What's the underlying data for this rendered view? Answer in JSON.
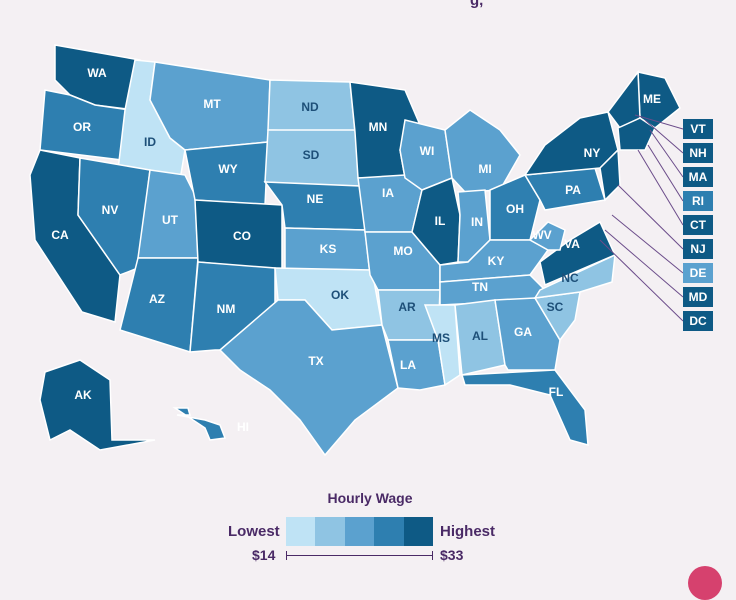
{
  "page": {
    "title_fragment": "g,"
  },
  "legend": {
    "title": "Hourly Wage",
    "lowest_label": "Lowest",
    "highest_label": "Highest",
    "min_value": "$14",
    "max_value": "$33",
    "scale_colors": [
      "#bfe3f5",
      "#8fc4e3",
      "#5ba1cf",
      "#2e7fb0",
      "#0e5a85"
    ]
  },
  "map": {
    "states": [
      {
        "abbr": "WA",
        "level": 5
      },
      {
        "abbr": "OR",
        "level": 4
      },
      {
        "abbr": "CA",
        "level": 5
      },
      {
        "abbr": "ID",
        "level": 1
      },
      {
        "abbr": "NV",
        "level": 4
      },
      {
        "abbr": "UT",
        "level": 3
      },
      {
        "abbr": "AZ",
        "level": 4
      },
      {
        "abbr": "MT",
        "level": 3
      },
      {
        "abbr": "WY",
        "level": 4
      },
      {
        "abbr": "CO",
        "level": 5
      },
      {
        "abbr": "NM",
        "level": 4
      },
      {
        "abbr": "ND",
        "level": 2
      },
      {
        "abbr": "SD",
        "level": 2
      },
      {
        "abbr": "NE",
        "level": 4
      },
      {
        "abbr": "KS",
        "level": 3
      },
      {
        "abbr": "OK",
        "level": 1
      },
      {
        "abbr": "TX",
        "level": 3
      },
      {
        "abbr": "MN",
        "level": 5
      },
      {
        "abbr": "IA",
        "level": 3
      },
      {
        "abbr": "MO",
        "level": 3
      },
      {
        "abbr": "AR",
        "level": 2
      },
      {
        "abbr": "LA",
        "level": 3
      },
      {
        "abbr": "WI",
        "level": 3
      },
      {
        "abbr": "IL",
        "level": 5
      },
      {
        "abbr": "MI",
        "level": 3
      },
      {
        "abbr": "IN",
        "level": 3
      },
      {
        "abbr": "OH",
        "level": 4
      },
      {
        "abbr": "KY",
        "level": 3
      },
      {
        "abbr": "TN",
        "level": 3
      },
      {
        "abbr": "MS",
        "level": 1
      },
      {
        "abbr": "AL",
        "level": 2
      },
      {
        "abbr": "GA",
        "level": 3
      },
      {
        "abbr": "FL",
        "level": 4
      },
      {
        "abbr": "SC",
        "level": 2
      },
      {
        "abbr": "NC",
        "level": 2
      },
      {
        "abbr": "VA",
        "level": 5
      },
      {
        "abbr": "WV",
        "level": 3
      },
      {
        "abbr": "PA",
        "level": 4
      },
      {
        "abbr": "NY",
        "level": 5
      },
      {
        "abbr": "ME",
        "level": 5
      },
      {
        "abbr": "AK",
        "level": 5
      },
      {
        "abbr": "HI",
        "level": 4
      }
    ],
    "callouts": [
      {
        "abbr": "VT",
        "level": 5
      },
      {
        "abbr": "NH",
        "level": 5
      },
      {
        "abbr": "MA",
        "level": 5
      },
      {
        "abbr": "RI",
        "level": 4
      },
      {
        "abbr": "CT",
        "level": 5
      },
      {
        "abbr": "NJ",
        "level": 5
      },
      {
        "abbr": "DE",
        "level": 3
      },
      {
        "abbr": "MD",
        "level": 5
      },
      {
        "abbr": "DC",
        "level": 5
      }
    ]
  }
}
